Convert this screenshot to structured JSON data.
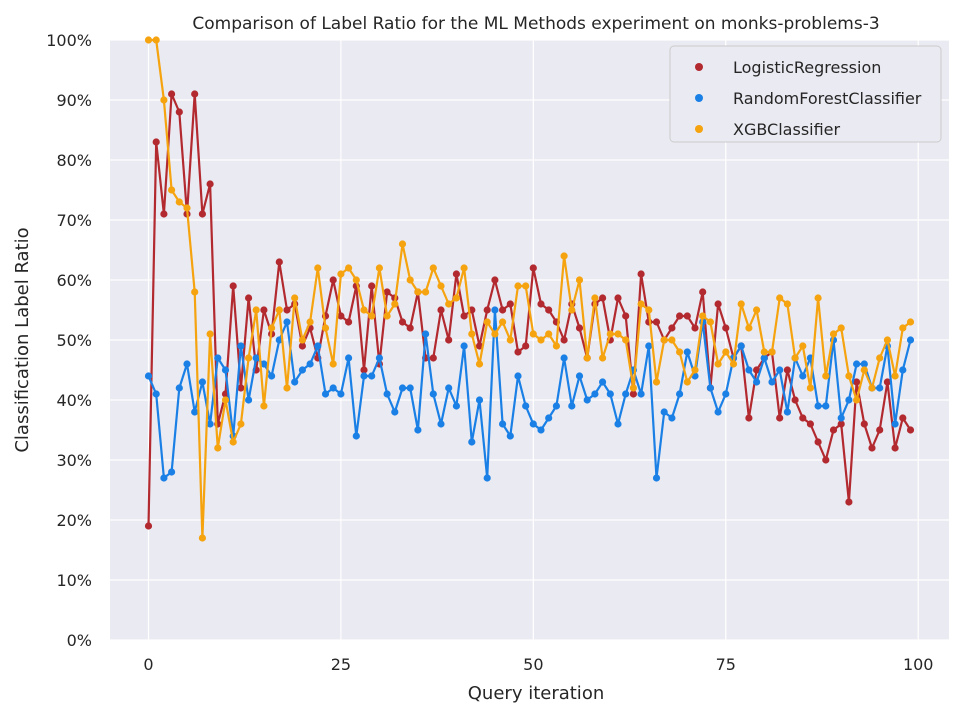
{
  "chart_data": {
    "type": "line",
    "title": "Comparison of Label Ratio for the ML Methods experiment on monks-problems-3",
    "xlabel": "Query iteration",
    "ylabel": "Classification Label Ratio",
    "xlim": [
      -5,
      104
    ],
    "ylim": [
      0,
      1
    ],
    "xticks": [
      0,
      25,
      50,
      75,
      100
    ],
    "xtick_labels": [
      "0",
      "25",
      "50",
      "75",
      "100"
    ],
    "yticks": [
      0,
      0.1,
      0.2,
      0.3,
      0.4,
      0.5,
      0.6,
      0.7,
      0.8,
      0.9,
      1.0
    ],
    "ytick_labels": [
      "0%",
      "10%",
      "20%",
      "30%",
      "40%",
      "50%",
      "60%",
      "70%",
      "80%",
      "90%",
      "100%"
    ],
    "grid": true,
    "legend_position": "top-right",
    "background": "#eaeaf2",
    "series": [
      {
        "name": "LogisticRegression",
        "color": "#b22a2f",
        "values": [
          0.19,
          0.83,
          0.71,
          0.91,
          0.88,
          0.71,
          0.91,
          0.71,
          0.76,
          0.36,
          0.41,
          0.59,
          0.42,
          0.57,
          0.45,
          0.55,
          0.51,
          0.63,
          0.55,
          0.56,
          0.49,
          0.52,
          0.47,
          0.54,
          0.6,
          0.54,
          0.53,
          0.59,
          0.45,
          0.59,
          0.46,
          0.58,
          0.57,
          0.53,
          0.52,
          0.58,
          0.47,
          0.47,
          0.55,
          0.5,
          0.61,
          0.54,
          0.55,
          0.49,
          0.55,
          0.6,
          0.55,
          0.56,
          0.48,
          0.49,
          0.62,
          0.56,
          0.55,
          0.53,
          0.5,
          0.56,
          0.52,
          0.47,
          0.56,
          0.57,
          0.5,
          0.57,
          0.54,
          0.41,
          0.61,
          0.53,
          0.53,
          0.5,
          0.52,
          0.54,
          0.54,
          0.52,
          0.58,
          0.42,
          0.56,
          0.52,
          0.47,
          0.49,
          0.37,
          0.45,
          0.47,
          0.48,
          0.37,
          0.45,
          0.4,
          0.37,
          0.36,
          0.33,
          0.3,
          0.35,
          0.36,
          0.23,
          0.43,
          0.36,
          0.32,
          0.35,
          0.43,
          0.32,
          0.37,
          0.35
        ]
      },
      {
        "name": "RandomForestClassifier",
        "color": "#1a80e6",
        "values": [
          0.44,
          0.41,
          0.27,
          0.28,
          0.42,
          0.46,
          0.38,
          0.43,
          0.36,
          0.47,
          0.45,
          0.34,
          0.49,
          0.4,
          0.47,
          0.46,
          0.44,
          0.5,
          0.53,
          0.43,
          0.45,
          0.46,
          0.49,
          0.41,
          0.42,
          0.41,
          0.47,
          0.34,
          0.44,
          0.44,
          0.47,
          0.41,
          0.38,
          0.42,
          0.42,
          0.35,
          0.51,
          0.41,
          0.36,
          0.42,
          0.39,
          0.49,
          0.33,
          0.4,
          0.27,
          0.55,
          0.36,
          0.34,
          0.44,
          0.39,
          0.36,
          0.35,
          0.37,
          0.39,
          0.47,
          0.39,
          0.44,
          0.4,
          0.41,
          0.43,
          0.41,
          0.36,
          0.41,
          0.45,
          0.41,
          0.49,
          0.27,
          0.38,
          0.37,
          0.41,
          0.48,
          0.44,
          0.53,
          0.42,
          0.38,
          0.41,
          0.47,
          0.49,
          0.45,
          0.43,
          0.47,
          0.43,
          0.45,
          0.38,
          0.47,
          0.44,
          0.47,
          0.39,
          0.39,
          0.5,
          0.37,
          0.4,
          0.46,
          0.46,
          0.42,
          0.42,
          0.49,
          0.36,
          0.45,
          0.5
        ]
      },
      {
        "name": "XGBClassifier",
        "color": "#f5a30f",
        "values": [
          1.0,
          1.0,
          0.9,
          0.75,
          0.73,
          0.72,
          0.58,
          0.17,
          0.51,
          0.32,
          0.4,
          0.33,
          0.36,
          0.47,
          0.55,
          0.39,
          0.52,
          0.55,
          0.42,
          0.57,
          0.5,
          0.53,
          0.62,
          0.52,
          0.46,
          0.61,
          0.62,
          0.6,
          0.55,
          0.54,
          0.62,
          0.54,
          0.56,
          0.66,
          0.6,
          0.58,
          0.58,
          0.62,
          0.59,
          0.56,
          0.57,
          0.62,
          0.51,
          0.46,
          0.53,
          0.51,
          0.53,
          0.5,
          0.59,
          0.59,
          0.51,
          0.5,
          0.51,
          0.49,
          0.64,
          0.55,
          0.6,
          0.47,
          0.57,
          0.47,
          0.51,
          0.51,
          0.5,
          0.42,
          0.56,
          0.55,
          0.43,
          0.5,
          0.5,
          0.48,
          0.43,
          0.45,
          0.54,
          0.53,
          0.46,
          0.48,
          0.46,
          0.56,
          0.52,
          0.55,
          0.48,
          0.48,
          0.57,
          0.56,
          0.47,
          0.49,
          0.42,
          0.57,
          0.44,
          0.51,
          0.52,
          0.44,
          0.4,
          0.45,
          0.42,
          0.47,
          0.5,
          0.44,
          0.52,
          0.53
        ]
      }
    ]
  }
}
